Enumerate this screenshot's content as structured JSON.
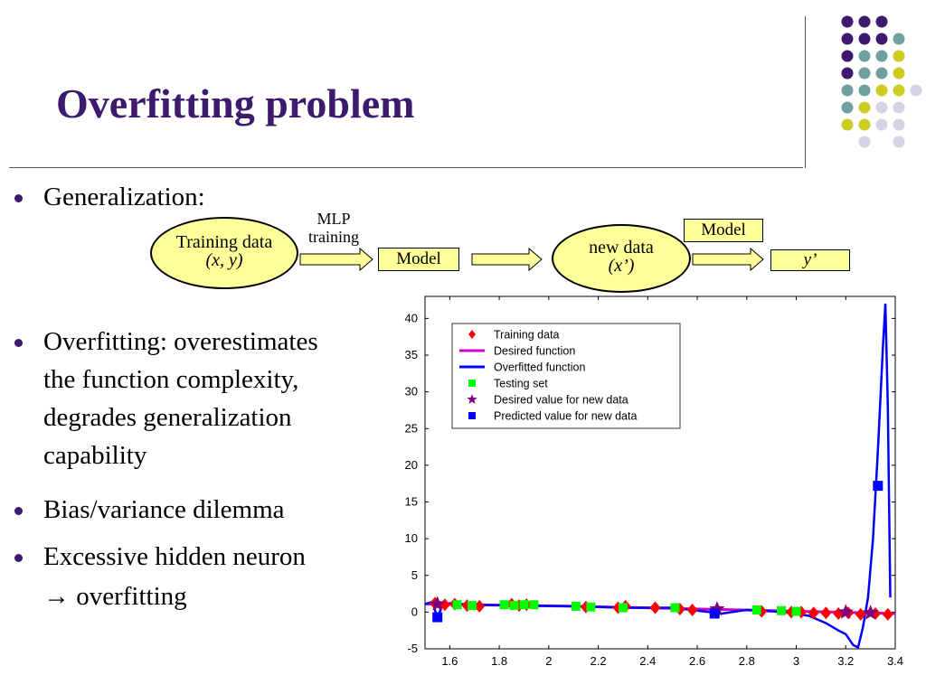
{
  "slide": {
    "title": "Overfitting problem",
    "bullets": [
      {
        "lines": [
          "Generalization:"
        ]
      },
      {
        "lines": [
          "Overfitting: overestimates",
          "the function complexity,",
          "degrades generalization",
          "capability"
        ]
      },
      {
        "lines": [
          "Bias/variance dilemma"
        ]
      },
      {
        "lines": [
          "Excessive hidden neuron",
          "→ overfitting"
        ]
      }
    ],
    "accent_color": "#3d1a6e"
  },
  "diagram": {
    "training_oval": {
      "line1": "Training data",
      "line2": "(x, y)"
    },
    "mlp_label": {
      "line1": "MLP",
      "line2": "training"
    },
    "model_box": "Model",
    "new_data_oval": {
      "line1": "new data",
      "line2": "(x’)"
    },
    "model_box2": "Model",
    "output_box": "y’",
    "fill_color": "#ffff99"
  },
  "chart_data": {
    "type": "line",
    "xlim": [
      1.5,
      3.4
    ],
    "ylim": [
      -5,
      43
    ],
    "xticks": [
      "1.6",
      "1.8",
      "2",
      "2.2",
      "2.4",
      "2.6",
      "2.8",
      "3",
      "3.2",
      "3.4"
    ],
    "yticks": [
      "-5",
      "0",
      "5",
      "10",
      "15",
      "20",
      "25",
      "30",
      "35",
      "40"
    ],
    "legend": {
      "position": "top-left",
      "entries": [
        {
          "label": "Training data",
          "marker": "diamond",
          "color": "#ff0000"
        },
        {
          "label": "Desired function",
          "marker": "line",
          "color": "#cc00cc"
        },
        {
          "label": "Overfitted function",
          "marker": "line",
          "color": "#0000ff"
        },
        {
          "label": "Testing set",
          "marker": "square",
          "color": "#00ff00"
        },
        {
          "label": "Desired value for new data",
          "marker": "star",
          "color": "#7f007f"
        },
        {
          "label": "Predicted value for new data",
          "marker": "square",
          "color": "#0000ff"
        }
      ]
    },
    "series": [
      {
        "name": "Training data",
        "x": [
          1.54,
          1.58,
          1.62,
          1.67,
          1.72,
          1.85,
          1.88,
          1.91,
          2.15,
          2.28,
          2.31,
          2.43,
          2.53,
          2.58,
          2.86,
          2.98,
          3.02,
          3.07,
          3.12,
          3.17,
          3.21,
          3.26,
          3.32,
          3.37
        ],
        "y": [
          1.2,
          1.0,
          1.1,
          0.9,
          0.8,
          1.1,
          0.9,
          1.0,
          0.7,
          0.6,
          0.8,
          0.6,
          0.4,
          0.3,
          0.1,
          0.0,
          0.0,
          -0.1,
          -0.1,
          -0.2,
          -0.1,
          -0.3,
          -0.2,
          -0.3
        ]
      },
      {
        "name": "Desired function",
        "x": [
          1.5,
          1.7,
          1.9,
          2.1,
          2.3,
          2.5,
          2.7,
          2.9,
          3.1,
          3.3,
          3.4
        ],
        "y": [
          1.1,
          1.0,
          0.9,
          0.8,
          0.65,
          0.5,
          0.35,
          0.2,
          0.05,
          -0.1,
          -0.2
        ]
      },
      {
        "name": "Overfitted function",
        "x": [
          1.5,
          1.53,
          1.55,
          1.57,
          1.6,
          1.7,
          1.9,
          2.1,
          2.3,
          2.5,
          2.6,
          2.7,
          2.8,
          2.95,
          3.05,
          3.12,
          3.17,
          3.2,
          3.23,
          3.25,
          3.27,
          3.29,
          3.31,
          3.33,
          3.35,
          3.36,
          3.37,
          3.38
        ],
        "y": [
          1.1,
          1.4,
          -0.8,
          1.0,
          1.2,
          1.0,
          0.9,
          0.8,
          0.6,
          0.6,
          0.2,
          -0.2,
          0.3,
          0.0,
          -0.5,
          -1.5,
          -2.5,
          -3.0,
          -4.5,
          -4.8,
          -2.0,
          2.0,
          10.0,
          22.0,
          36.0,
          42.0,
          28.0,
          2.0
        ]
      },
      {
        "name": "Testing set",
        "x": [
          1.63,
          1.69,
          1.82,
          1.86,
          1.9,
          1.94,
          2.11,
          2.17,
          2.3,
          2.51,
          2.84,
          2.94,
          3.0
        ],
        "y": [
          1.0,
          0.9,
          1.0,
          0.9,
          1.0,
          1.0,
          0.8,
          0.7,
          0.6,
          0.6,
          0.3,
          0.2,
          0.1
        ]
      },
      {
        "name": "Desired value for new data",
        "x": [
          1.55,
          2.68,
          3.2,
          3.3
        ],
        "y": [
          1.1,
          0.4,
          0.0,
          -0.1
        ]
      },
      {
        "name": "Predicted value for new data",
        "x": [
          1.55,
          2.67,
          3.33
        ],
        "y": [
          -0.7,
          -0.2,
          17.2
        ]
      }
    ],
    "colors": {
      "axis": "#000000",
      "background": "#ffffff"
    }
  }
}
